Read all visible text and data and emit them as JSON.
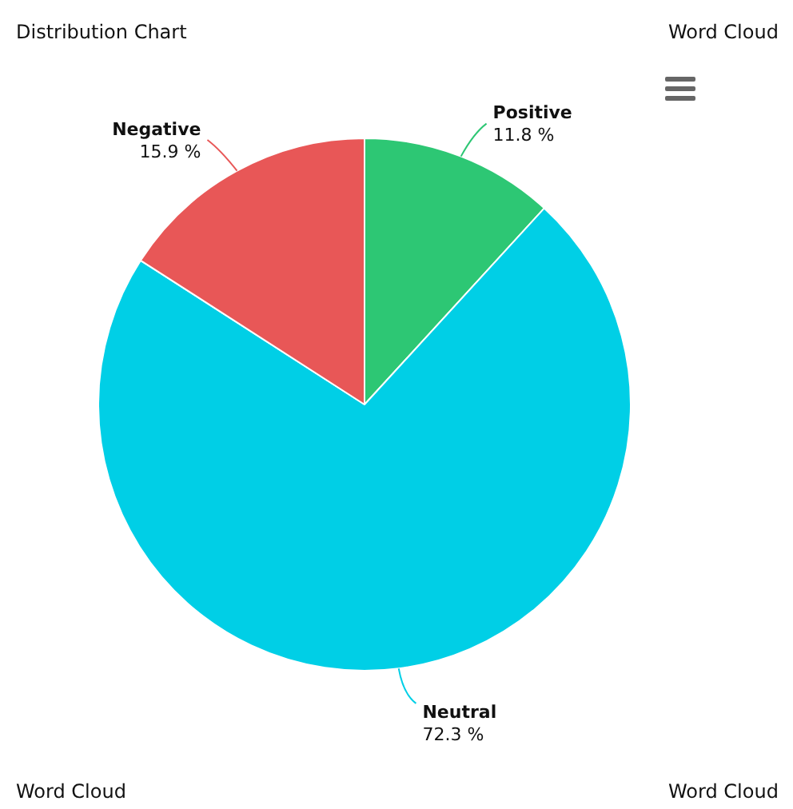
{
  "chart_data": {
    "type": "pie",
    "title": "Distribution Chart",
    "categories": [
      "Positive",
      "Neutral",
      "Negative"
    ],
    "values": [
      11.8,
      72.3,
      15.9
    ],
    "colors": [
      "#2dc774",
      "#00cfe6",
      "#e85757"
    ],
    "value_labels": [
      "11.8 %",
      "72.3 %",
      "15.9 %"
    ],
    "legend": false,
    "annotations": [
      "Word Cloud",
      "Word Cloud",
      "Word Cloud"
    ]
  }
}
